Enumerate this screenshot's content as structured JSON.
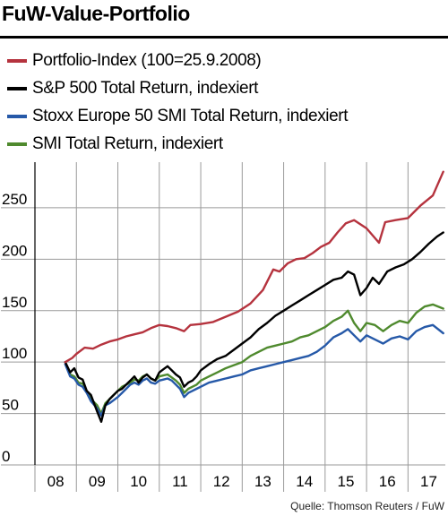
{
  "title": "FuW-Value-Portfolio",
  "source": "Quelle: Thomson Reuters / FuW",
  "chart_data": {
    "type": "line",
    "title": "FuW-Value-Portfolio",
    "xlabel": "",
    "ylabel": "",
    "x_ticks": [
      "08",
      "09",
      "10",
      "11",
      "12",
      "13",
      "14",
      "15",
      "16",
      "17"
    ],
    "x_tick_values": [
      2008.5,
      2009.5,
      2010.5,
      2011.5,
      2012.5,
      2013.5,
      2014.5,
      2015.5,
      2016.5,
      2017.5
    ],
    "y_ticks": [
      0,
      50,
      100,
      150,
      200,
      250
    ],
    "y_tick_labels": [
      "0",
      "50",
      "100",
      "150",
      "200",
      "250"
    ],
    "xlim": [
      2008.0,
      2017.9
    ],
    "ylim": [
      0,
      290
    ],
    "grid": true,
    "legend_position": "top-left",
    "series": [
      {
        "name": "Portfolio-Index (100=25.9.2008)",
        "color": "#b5333e",
        "x": [
          2008.73,
          2008.9,
          2009.0,
          2009.2,
          2009.4,
          2009.6,
          2009.8,
          2010.0,
          2010.2,
          2010.4,
          2010.6,
          2010.8,
          2011.0,
          2011.2,
          2011.4,
          2011.6,
          2011.75,
          2012.0,
          2012.3,
          2012.6,
          2012.9,
          2013.2,
          2013.5,
          2013.75,
          2013.9,
          2014.1,
          2014.3,
          2014.5,
          2014.7,
          2014.9,
          2015.1,
          2015.3,
          2015.5,
          2015.7,
          2016.0,
          2016.3,
          2016.45,
          2016.7,
          2017.0,
          2017.3,
          2017.6,
          2017.85
        ],
        "y": [
          100,
          104,
          108,
          114,
          113,
          117,
          120,
          122,
          125,
          127,
          129,
          133,
          136,
          135,
          133,
          130,
          136,
          137,
          139,
          144,
          149,
          157,
          170,
          190,
          188,
          196,
          200,
          201,
          206,
          212,
          216,
          226,
          235,
          238,
          230,
          216,
          236,
          238,
          240,
          252,
          262,
          285
        ]
      },
      {
        "name": "S&P 500 Total Return, indexiert",
        "color": "#000000",
        "x": [
          2008.73,
          2008.85,
          2008.95,
          2009.05,
          2009.15,
          2009.25,
          2009.35,
          2009.5,
          2009.6,
          2009.7,
          2009.8,
          2009.9,
          2010.0,
          2010.1,
          2010.2,
          2010.3,
          2010.4,
          2010.5,
          2010.6,
          2010.7,
          2010.8,
          2010.9,
          2011.0,
          2011.1,
          2011.2,
          2011.3,
          2011.4,
          2011.5,
          2011.6,
          2011.7,
          2011.8,
          2011.9,
          2012.0,
          2012.2,
          2012.4,
          2012.6,
          2012.8,
          2013.0,
          2013.2,
          2013.4,
          2013.6,
          2013.8,
          2014.0,
          2014.2,
          2014.4,
          2014.6,
          2014.8,
          2015.0,
          2015.2,
          2015.4,
          2015.55,
          2015.7,
          2015.85,
          2016.0,
          2016.15,
          2016.3,
          2016.5,
          2016.7,
          2016.9,
          2017.1,
          2017.3,
          2017.5,
          2017.7,
          2017.85
        ],
        "y": [
          100,
          90,
          94,
          85,
          83,
          72,
          68,
          52,
          42,
          58,
          64,
          68,
          72,
          74,
          78,
          82,
          86,
          80,
          85,
          88,
          84,
          82,
          90,
          93,
          96,
          92,
          88,
          85,
          76,
          80,
          82,
          86,
          92,
          98,
          103,
          106,
          112,
          118,
          124,
          132,
          138,
          145,
          150,
          155,
          160,
          165,
          170,
          175,
          180,
          182,
          188,
          185,
          165,
          172,
          182,
          176,
          188,
          192,
          195,
          200,
          207,
          215,
          222,
          226
        ]
      },
      {
        "name": "Stoxx Europe 50 SMI Total Return, indexiert",
        "color": "#2659a8",
        "x": [
          2008.73,
          2008.85,
          2008.95,
          2009.05,
          2009.15,
          2009.25,
          2009.35,
          2009.5,
          2009.6,
          2009.7,
          2009.8,
          2009.9,
          2010.0,
          2010.1,
          2010.2,
          2010.3,
          2010.4,
          2010.5,
          2010.6,
          2010.7,
          2010.8,
          2010.9,
          2011.0,
          2011.1,
          2011.2,
          2011.3,
          2011.4,
          2011.5,
          2011.6,
          2011.7,
          2011.8,
          2011.9,
          2012.0,
          2012.2,
          2012.4,
          2012.6,
          2012.8,
          2013.0,
          2013.2,
          2013.4,
          2013.6,
          2013.8,
          2014.0,
          2014.2,
          2014.4,
          2014.6,
          2014.8,
          2015.0,
          2015.2,
          2015.4,
          2015.55,
          2015.7,
          2015.85,
          2016.0,
          2016.2,
          2016.4,
          2016.6,
          2016.8,
          2017.0,
          2017.2,
          2017.4,
          2017.6,
          2017.85
        ],
        "y": [
          98,
          86,
          84,
          78,
          76,
          70,
          62,
          55,
          48,
          58,
          60,
          63,
          66,
          70,
          74,
          78,
          80,
          78,
          82,
          84,
          80,
          79,
          82,
          83,
          84,
          82,
          78,
          74,
          66,
          70,
          72,
          74,
          76,
          80,
          82,
          84,
          86,
          88,
          92,
          94,
          96,
          98,
          100,
          102,
          104,
          106,
          110,
          116,
          124,
          128,
          132,
          126,
          120,
          126,
          122,
          118,
          123,
          125,
          122,
          130,
          134,
          136,
          128
        ]
      },
      {
        "name": "SMI Total Return, indexiert",
        "color": "#4f8a2e",
        "x": [
          2008.73,
          2008.85,
          2008.95,
          2009.05,
          2009.15,
          2009.25,
          2009.35,
          2009.5,
          2009.6,
          2009.7,
          2009.8,
          2009.9,
          2010.0,
          2010.1,
          2010.2,
          2010.3,
          2010.4,
          2010.5,
          2010.6,
          2010.7,
          2010.8,
          2010.9,
          2011.0,
          2011.1,
          2011.2,
          2011.3,
          2011.4,
          2011.5,
          2011.6,
          2011.7,
          2011.8,
          2011.9,
          2012.0,
          2012.2,
          2012.4,
          2012.6,
          2012.8,
          2013.0,
          2013.2,
          2013.4,
          2013.6,
          2013.8,
          2014.0,
          2014.2,
          2014.4,
          2014.6,
          2014.8,
          2015.0,
          2015.2,
          2015.4,
          2015.55,
          2015.7,
          2015.85,
          2016.0,
          2016.2,
          2016.4,
          2016.6,
          2016.8,
          2017.0,
          2017.2,
          2017.4,
          2017.6,
          2017.85
        ],
        "y": [
          100,
          88,
          86,
          80,
          79,
          72,
          64,
          58,
          50,
          60,
          64,
          68,
          72,
          76,
          78,
          80,
          83,
          82,
          86,
          88,
          84,
          82,
          86,
          87,
          88,
          85,
          82,
          78,
          70,
          74,
          76,
          78,
          82,
          86,
          90,
          94,
          97,
          100,
          106,
          110,
          114,
          116,
          118,
          120,
          124,
          126,
          130,
          134,
          140,
          144,
          150,
          138,
          130,
          138,
          136,
          130,
          136,
          140,
          138,
          148,
          154,
          156,
          152
        ]
      }
    ]
  }
}
